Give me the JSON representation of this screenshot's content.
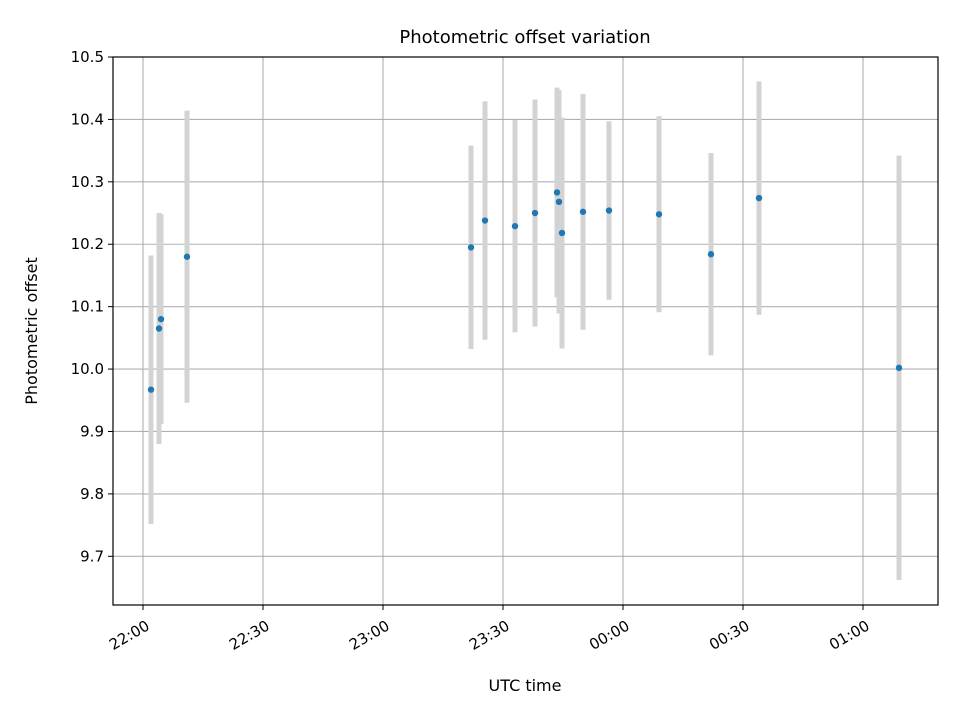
{
  "chart_data": {
    "type": "scatter",
    "title": "Photometric offset variation",
    "xlabel": "UTC time",
    "ylabel": "Photometric offset",
    "grid": true,
    "colors": {
      "point": "#1f77b4",
      "errorbar": "#d3d3d3",
      "grid": "#b0b0b0",
      "axis": "#000000"
    },
    "x_ticks": [
      "22:00",
      "22:30",
      "23:00",
      "23:30",
      "00:00",
      "00:30",
      "01:00"
    ],
    "y_ticks": [
      "9.7",
      "9.8",
      "9.9",
      "10.0",
      "10.1",
      "10.2",
      "10.3",
      "10.4",
      "10.5"
    ],
    "xlim": [
      "21:52:30",
      "01:18:45"
    ],
    "ylim": [
      9.622,
      10.5
    ],
    "series": [
      {
        "points": [
          {
            "x": "22:02:00",
            "y": 9.967,
            "ylow": 9.752,
            "yhigh": 10.182
          },
          {
            "x": "22:04:00",
            "y": 10.065,
            "ylow": 9.88,
            "yhigh": 10.25
          },
          {
            "x": "22:04:30",
            "y": 10.08,
            "ylow": 9.912,
            "yhigh": 10.248
          },
          {
            "x": "22:11:00",
            "y": 10.18,
            "ylow": 9.946,
            "yhigh": 10.414
          },
          {
            "x": "23:22:00",
            "y": 10.195,
            "ylow": 10.032,
            "yhigh": 10.358
          },
          {
            "x": "23:25:30",
            "y": 10.238,
            "ylow": 10.047,
            "yhigh": 10.429
          },
          {
            "x": "23:33:00",
            "y": 10.229,
            "ylow": 10.059,
            "yhigh": 10.399
          },
          {
            "x": "23:38:00",
            "y": 10.25,
            "ylow": 10.068,
            "yhigh": 10.432
          },
          {
            "x": "23:43:30",
            "y": 10.283,
            "ylow": 10.115,
            "yhigh": 10.451
          },
          {
            "x": "23:44:00",
            "y": 10.268,
            "ylow": 10.089,
            "yhigh": 10.447
          },
          {
            "x": "23:44:45",
            "y": 10.218,
            "ylow": 10.033,
            "yhigh": 10.403
          },
          {
            "x": "23:50:00",
            "y": 10.252,
            "ylow": 10.063,
            "yhigh": 10.441
          },
          {
            "x": "23:56:30",
            "y": 10.254,
            "ylow": 10.111,
            "yhigh": 10.397
          },
          {
            "x": "00:09:00",
            "y": 10.248,
            "ylow": 10.091,
            "yhigh": 10.405
          },
          {
            "x": "00:22:00",
            "y": 10.184,
            "ylow": 10.022,
            "yhigh": 10.346
          },
          {
            "x": "00:34:00",
            "y": 10.274,
            "ylow": 10.087,
            "yhigh": 10.461
          },
          {
            "x": "01:09:00",
            "y": 10.002,
            "ylow": 9.662,
            "yhigh": 10.342
          }
        ]
      }
    ]
  }
}
